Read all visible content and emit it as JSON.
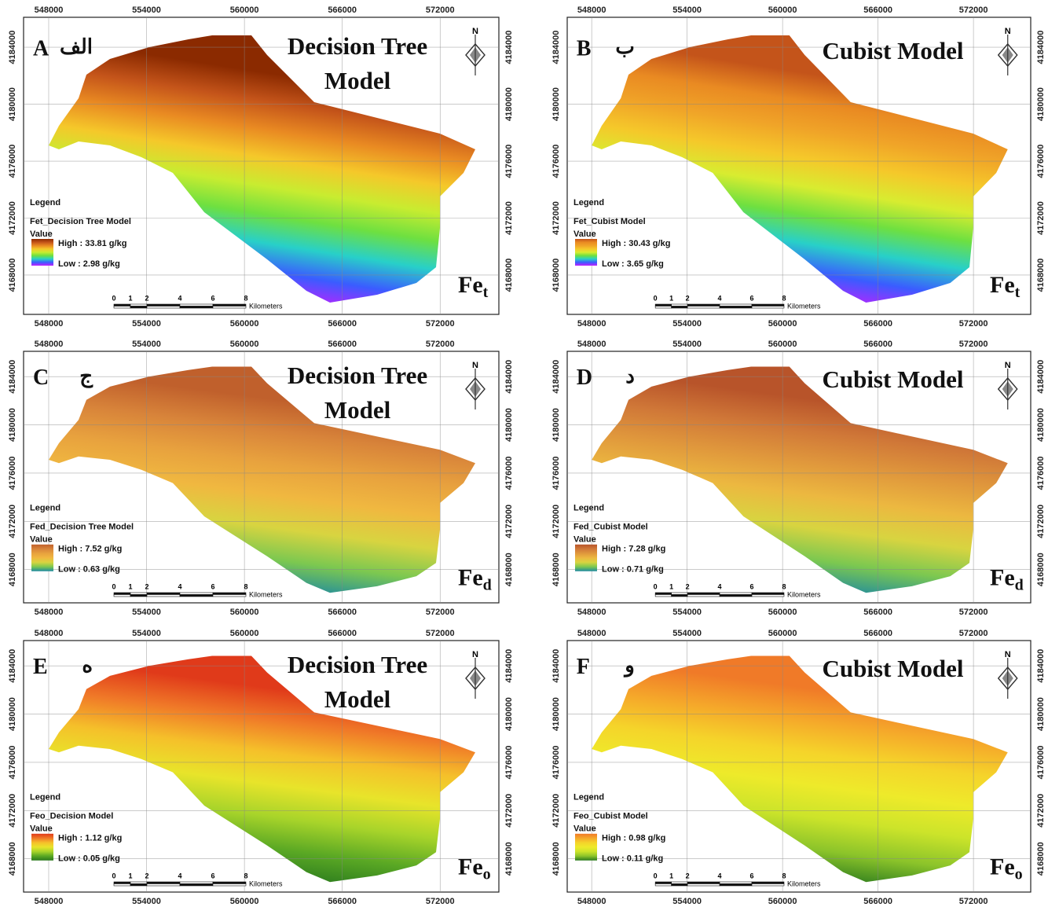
{
  "axes": {
    "xticks": [
      548000,
      554000,
      560000,
      566000,
      572000
    ],
    "yticks": [
      4168000,
      4172000,
      4176000,
      4180000,
      4184000
    ],
    "xlim": [
      546460,
      575600
    ],
    "ylim": [
      4165240,
      4186100
    ]
  },
  "scale_bar": {
    "ticks": [
      0,
      1,
      2,
      4,
      6,
      8
    ],
    "unit": "Kilometers"
  },
  "north": "N",
  "legend_heading": "Legend",
  "value_heading": "Value",
  "panels": [
    {
      "letter": "A",
      "letter_fa": "الف",
      "title": [
        "Decision Tree",
        "Model"
      ],
      "layer": "Fet_Decision Tree Model",
      "high": "High : 33.81 g/kg",
      "low": "Low : 2.98 g/kg",
      "symbol": "Fe",
      "subscript": "t",
      "colors": [
        "#8b2a00",
        "#c4541a",
        "#e98a22",
        "#f5c82a",
        "#c8ec30",
        "#6ee040",
        "#28d0c8",
        "#3a5cff",
        "#c020ff"
      ]
    },
    {
      "letter": "B",
      "letter_fa": "ب",
      "title": [
        "Cubist Model"
      ],
      "layer": "Fet_Cubist Model",
      "high": "High : 30.43 g/kg",
      "low": "Low : 3.65 g/kg",
      "symbol": "Fe",
      "subscript": "t",
      "colors": [
        "#c4541a",
        "#e98a22",
        "#f0a428",
        "#f5c82a",
        "#d8ec30",
        "#6ee040",
        "#28d0c8",
        "#3a5cff",
        "#c020ff"
      ]
    },
    {
      "letter": "C",
      "letter_fa": "ج",
      "title": [
        "Decision Tree",
        "Model"
      ],
      "layer": "Fed_Decision Tree Model",
      "high": "High : 7.52 g/kg",
      "low": "Low : 0.63 g/kg",
      "symbol": "Fe",
      "subscript": "d",
      "colors": [
        "#c0602c",
        "#d8843a",
        "#e8a23e",
        "#f0b840",
        "#d8d440",
        "#7cc850",
        "#1e8aa0"
      ]
    },
    {
      "letter": "D",
      "letter_fa": "د",
      "title": [
        "Cubist Model"
      ],
      "layer": "Fed_Cubist Model",
      "high": "High : 7.28 g/kg",
      "low": "Low : 0.71 g/kg",
      "symbol": "Fe",
      "subscript": "d",
      "colors": [
        "#b8542a",
        "#d07838",
        "#e0983c",
        "#ecb840",
        "#d8d440",
        "#7cc850",
        "#1e8aa0"
      ]
    },
    {
      "letter": "E",
      "letter_fa": "ه",
      "title": [
        "Decision Tree",
        "Model"
      ],
      "layer": "Feo_Decision Model",
      "high": "High : 1.12 g/kg",
      "low": "Low : 0.05 g/kg",
      "symbol": "Fe",
      "subscript": "o",
      "colors": [
        "#e03a1a",
        "#f07a28",
        "#f5c02a",
        "#e8e42a",
        "#a8d42a",
        "#5aa824",
        "#2a7a1e"
      ]
    },
    {
      "letter": "F",
      "letter_fa": "و",
      "title": [
        "Cubist Model"
      ],
      "layer": "Feo_Cubist Model",
      "high": "High : 0.98 g/kg",
      "low": "Low : 0.11 g/kg",
      "symbol": "Fe",
      "subscript": "o",
      "colors": [
        "#f07a28",
        "#f5a82a",
        "#f5d42a",
        "#eeea2a",
        "#cce42a",
        "#8cc42a",
        "#2a7a1e"
      ]
    }
  ]
}
